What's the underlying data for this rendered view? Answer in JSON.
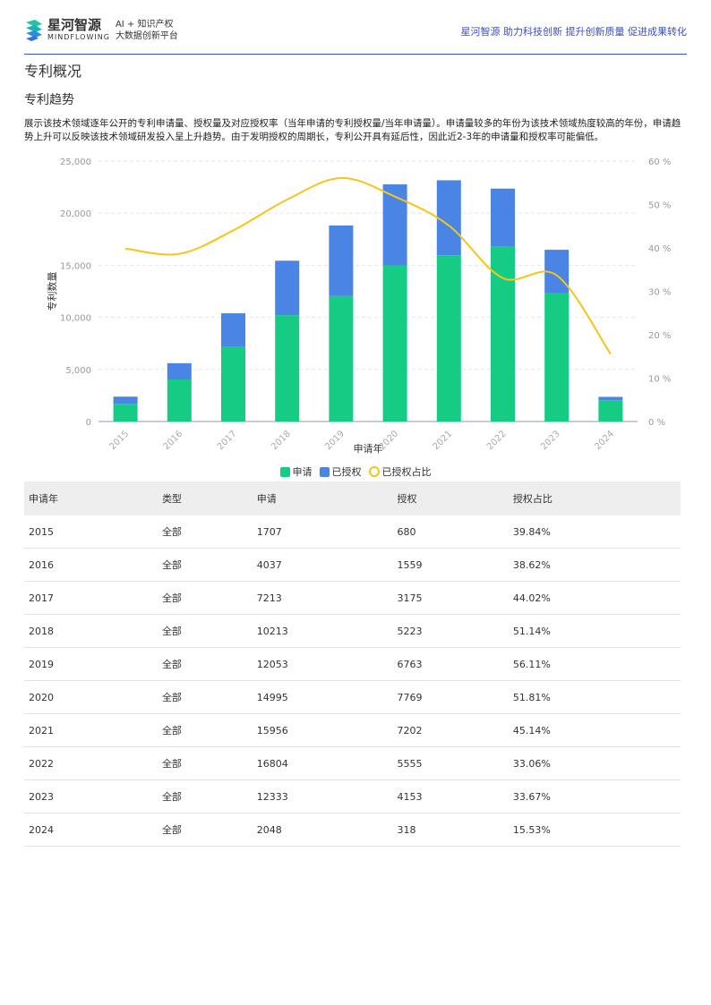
{
  "header": {
    "brand_cn": "星河智源",
    "brand_en": "MINDFLOWING",
    "tag_line1": "AI + 知识产权",
    "tag_line2": "大数据创新平台",
    "slogan": "星河智源 助力科技创新 提升创新质量 促进成果转化"
  },
  "page_title": "专利概况",
  "section_title": "专利趋势",
  "description": "展示该技术领域逐年公开的专利申请量、授权量及对应授权率（当年申请的专利授权量/当年申请量）。申请量较多的年份为该技术领域热度较高的年份，申请趋势上升可以反映该技术领域研发投入呈上升趋势。由于发明授权的周期长，专利公开具有延后性，因此近2-3年的申请量和授权率可能偏低。",
  "chart_data": {
    "type": "bar",
    "stacked": true,
    "categories": [
      "2015",
      "2016",
      "2017",
      "2018",
      "2019",
      "2020",
      "2021",
      "2022",
      "2023",
      "2024"
    ],
    "series": [
      {
        "name": "申请",
        "type": "bar",
        "color": "#16cc85",
        "values": [
          1707,
          4037,
          7213,
          10213,
          12053,
          14995,
          15956,
          16804,
          12333,
          2048
        ]
      },
      {
        "name": "已授权",
        "type": "bar",
        "color": "#4a84e4",
        "values": [
          680,
          1559,
          3175,
          5223,
          6763,
          7769,
          7202,
          5555,
          4153,
          318
        ]
      },
      {
        "name": "已授权占比",
        "type": "line",
        "axis": "right",
        "color": "#f5c518",
        "values": [
          39.84,
          38.62,
          44.02,
          51.14,
          56.11,
          51.81,
          45.14,
          33.06,
          33.67,
          15.53
        ]
      }
    ],
    "xlabel": "申请年",
    "ylabel": "专利数量",
    "ylim": [
      0,
      25000
    ],
    "yticks": [
      "0",
      "5,000",
      "10,000",
      "15,000",
      "20,000",
      "25,000"
    ],
    "y2lim": [
      0,
      60
    ],
    "y2ticks": [
      "0 %",
      "10 %",
      "20 %",
      "30 %",
      "40 %",
      "50 %",
      "60 %"
    ],
    "grid": true,
    "legend": "bottom"
  },
  "table": {
    "headers": [
      "申请年",
      "类型",
      "申请",
      "授权",
      "授权占比"
    ],
    "rows": [
      [
        "2015",
        "全部",
        "1707",
        "680",
        "39.84%"
      ],
      [
        "2016",
        "全部",
        "4037",
        "1559",
        "38.62%"
      ],
      [
        "2017",
        "全部",
        "7213",
        "3175",
        "44.02%"
      ],
      [
        "2018",
        "全部",
        "10213",
        "5223",
        "51.14%"
      ],
      [
        "2019",
        "全部",
        "12053",
        "6763",
        "56.11%"
      ],
      [
        "2020",
        "全部",
        "14995",
        "7769",
        "51.81%"
      ],
      [
        "2021",
        "全部",
        "15956",
        "7202",
        "45.14%"
      ],
      [
        "2022",
        "全部",
        "16804",
        "5555",
        "33.06%"
      ],
      [
        "2023",
        "全部",
        "12333",
        "4153",
        "33.67%"
      ],
      [
        "2024",
        "全部",
        "2048",
        "318",
        "15.53%"
      ]
    ]
  }
}
